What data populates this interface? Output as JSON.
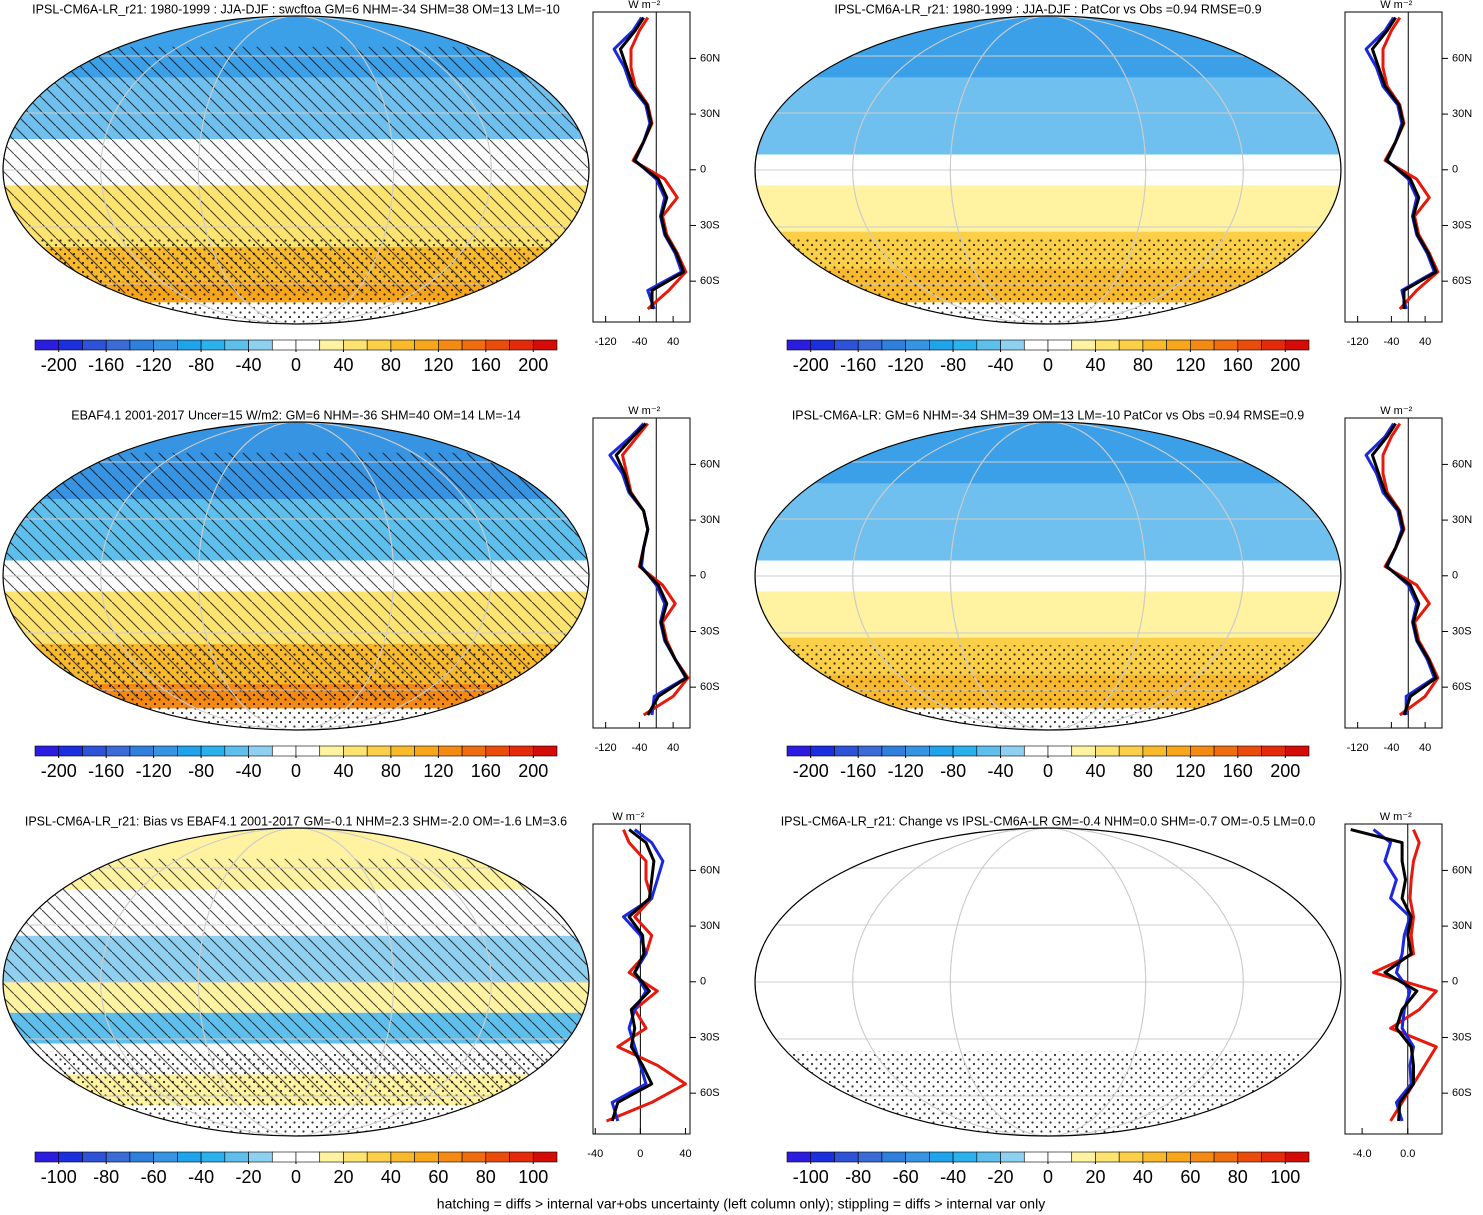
{
  "units": "W m⁻²",
  "footnote": "hatching = diffs > internal var+obs uncertainty (left column only); stippling = diffs > internal var only",
  "panels": [
    {
      "title": "IPSL-CM6A-LR_r21: 1980-1999 : JJA-DJF : swcftoa GM=6 NHM=-34 SHM=38 OM=13 LM=-10",
      "colorbar": {
        "min": -220,
        "max": 220,
        "ticks": [
          -200,
          -160,
          -120,
          -80,
          -40,
          0,
          40,
          80,
          120,
          160,
          200
        ]
      },
      "profile": {
        "xlim": [
          -150,
          80
        ],
        "xticks": [
          -120,
          -40,
          40
        ],
        "ylim": [
          -82,
          85
        ],
        "yticks": [
          {
            "value": 60,
            "label": "60N"
          },
          {
            "value": 30,
            "label": "30N"
          },
          0,
          {
            "value": -30,
            "label": "30S"
          },
          {
            "value": -60,
            "label": "60S"
          }
        ],
        "lat": [
          -75,
          -65,
          -55,
          -45,
          -35,
          -25,
          -15,
          -5,
          5,
          15,
          25,
          35,
          45,
          55,
          65,
          75,
          82
        ],
        "series": [
          {
            "color": "#e8180c",
            "values": [
              -20,
              30,
              70,
              50,
              25,
              15,
              50,
              20,
              -55,
              -30,
              -10,
              -20,
              -50,
              -60,
              -60,
              -40,
              -20
            ]
          },
          {
            "color": "#1a28e0",
            "values": [
              -5,
              -20,
              60,
              45,
              20,
              10,
              20,
              0,
              -50,
              -30,
              -15,
              -25,
              -60,
              -75,
              -100,
              -55,
              -35
            ]
          },
          {
            "color": "#000000",
            "values": [
              -10,
              -10,
              65,
              48,
              22,
              12,
              25,
              5,
              -52,
              -30,
              -12,
              -22,
              -55,
              -70,
              -85,
              -50,
              -30
            ]
          }
        ]
      }
    },
    {
      "title": "IPSL-CM6A-LR_r21: 1980-1999 : JJA-DJF : PatCor vs Obs =0.94 RMSE=0.9",
      "colorbar": {
        "min": -220,
        "max": 220,
        "ticks": [
          -200,
          -160,
          -120,
          -80,
          -40,
          0,
          40,
          80,
          120,
          160,
          200
        ]
      },
      "profile": {
        "xlim": [
          -150,
          80
        ],
        "xticks": [
          -120,
          -40,
          40
        ],
        "ylim": [
          -82,
          85
        ],
        "yticks": [
          {
            "value": 60,
            "label": "60N"
          },
          {
            "value": 30,
            "label": "30N"
          },
          0,
          {
            "value": -30,
            "label": "30S"
          },
          {
            "value": -60,
            "label": "60S"
          }
        ],
        "lat": [
          -75,
          -65,
          -55,
          -45,
          -35,
          -25,
          -15,
          -5,
          5,
          15,
          25,
          35,
          45,
          55,
          65,
          75,
          82
        ],
        "series": [
          {
            "color": "#e8180c",
            "values": [
              -20,
              20,
              70,
              50,
              25,
              15,
              50,
              20,
              -55,
              -30,
              -10,
              -20,
              -50,
              -60,
              -60,
              -40,
              -20
            ]
          },
          {
            "color": "#1a28e0",
            "values": [
              -5,
              -15,
              62,
              45,
              20,
              10,
              20,
              0,
              -50,
              -30,
              -15,
              -25,
              -60,
              -75,
              -100,
              -55,
              -35
            ]
          },
          {
            "color": "#000000",
            "values": [
              -10,
              -10,
              66,
              48,
              22,
              12,
              25,
              5,
              -52,
              -30,
              -12,
              -22,
              -55,
              -70,
              -85,
              -50,
              -30
            ]
          }
        ]
      }
    },
    {
      "title": "EBAF4.1 2001-2017 Uncer=15 W/m2: GM=6 NHM=-36 SHM=40 OM=14 LM=-14",
      "colorbar": {
        "min": -220,
        "max": 220,
        "ticks": [
          -200,
          -160,
          -120,
          -80,
          -40,
          0,
          40,
          80,
          120,
          160,
          200
        ]
      },
      "profile": {
        "xlim": [
          -150,
          80
        ],
        "xticks": [
          -120,
          -40,
          40
        ],
        "ylim": [
          -82,
          85
        ],
        "yticks": [
          {
            "value": 60,
            "label": "60N"
          },
          {
            "value": 30,
            "label": "30N"
          },
          0,
          {
            "value": -30,
            "label": "30S"
          },
          {
            "value": -60,
            "label": "60S"
          }
        ],
        "lat": [
          -75,
          -65,
          -55,
          -45,
          -35,
          -25,
          -15,
          -5,
          5,
          15,
          25,
          35,
          45,
          55,
          65,
          75,
          82
        ],
        "series": [
          {
            "color": "#e8180c",
            "values": [
              -30,
              40,
              75,
              45,
              25,
              15,
              45,
              15,
              -40,
              -30,
              -20,
              -30,
              -60,
              -70,
              -80,
              -45,
              -20
            ]
          },
          {
            "color": "#1a28e0",
            "values": [
              -10,
              -5,
              70,
              45,
              20,
              10,
              20,
              0,
              -35,
              -30,
              -20,
              -30,
              -65,
              -80,
              -110,
              -60,
              -30
            ]
          },
          {
            "color": "#000000",
            "values": [
              -20,
              5,
              72,
              45,
              22,
              12,
              25,
              5,
              -38,
              -30,
              -20,
              -30,
              -62,
              -75,
              -95,
              -55,
              -25
            ]
          }
        ]
      }
    },
    {
      "title": "IPSL-CM6A-LR: GM=6 NHM=-34 SHM=39 OM=13 LM=-10 PatCor vs Obs =0.94 RMSE=0.9",
      "colorbar": {
        "min": -220,
        "max": 220,
        "ticks": [
          -200,
          -160,
          -120,
          -80,
          -40,
          0,
          40,
          80,
          120,
          160,
          200
        ]
      },
      "profile": {
        "xlim": [
          -150,
          80
        ],
        "xticks": [
          -120,
          -40,
          40
        ],
        "ylim": [
          -82,
          85
        ],
        "yticks": [
          {
            "value": 60,
            "label": "60N"
          },
          {
            "value": 30,
            "label": "30N"
          },
          0,
          {
            "value": -30,
            "label": "30S"
          },
          {
            "value": -60,
            "label": "60S"
          }
        ],
        "lat": [
          -75,
          -65,
          -55,
          -45,
          -35,
          -25,
          -15,
          -5,
          5,
          15,
          25,
          35,
          45,
          55,
          65,
          75,
          82
        ],
        "series": [
          {
            "color": "#e8180c",
            "values": [
              -20,
              40,
              70,
              50,
              25,
              15,
              50,
              20,
              -55,
              -30,
              -10,
              -20,
              -50,
              -60,
              -60,
              -40,
              -20
            ]
          },
          {
            "color": "#1a28e0",
            "values": [
              -5,
              -5,
              62,
              45,
              20,
              10,
              20,
              0,
              -50,
              -30,
              -15,
              -25,
              -60,
              -75,
              -100,
              -55,
              -35
            ]
          },
          {
            "color": "#000000",
            "values": [
              -10,
              5,
              66,
              48,
              22,
              12,
              25,
              5,
              -52,
              -30,
              -12,
              -22,
              -55,
              -70,
              -85,
              -50,
              -30
            ]
          }
        ]
      }
    },
    {
      "title": "IPSL-CM6A-LR_r21: Bias vs EBAF4.1 2001-2017 GM=-0.1 NHM=2.3 SHM=-2.0 OM=-1.6 LM=3.6",
      "colorbar": {
        "min": -110,
        "max": 110,
        "ticks": [
          -100,
          -80,
          -60,
          -40,
          -20,
          0,
          20,
          40,
          60,
          80,
          100
        ]
      },
      "profile": {
        "xlim": [
          -42,
          44
        ],
        "xticks": [
          -40,
          0,
          40
        ],
        "ylim": [
          -82,
          85
        ],
        "yticks": [
          {
            "value": 60,
            "label": "60N"
          },
          {
            "value": 30,
            "label": "30N"
          },
          0,
          {
            "value": -30,
            "label": "30S"
          },
          {
            "value": -60,
            "label": "60S"
          }
        ],
        "lat": [
          -75,
          -65,
          -55,
          -45,
          -35,
          -25,
          -15,
          -5,
          5,
          15,
          25,
          35,
          45,
          55,
          65,
          75,
          82
        ],
        "series": [
          {
            "color": "#e8180c",
            "values": [
              -30,
              10,
              40,
              15,
              -20,
              5,
              -5,
              15,
              -10,
              5,
              10,
              -5,
              10,
              5,
              5,
              -10,
              -15
            ]
          },
          {
            "color": "#1a28e0",
            "values": [
              -20,
              -25,
              5,
              0,
              -5,
              -10,
              -5,
              5,
              -5,
              5,
              0,
              -15,
              10,
              15,
              20,
              10,
              -5
            ]
          },
          {
            "color": "#000000",
            "values": [
              -25,
              -20,
              10,
              2,
              -8,
              -5,
              -8,
              8,
              -5,
              3,
              2,
              -10,
              8,
              10,
              12,
              5,
              -10
            ]
          }
        ]
      }
    },
    {
      "title": "IPSL-CM6A-LR_r21: Change vs IPSL-CM6A-LR GM=-0.4 NHM=0.0 SHM=-0.7 OM=-0.5 LM=0.0",
      "colorbar": {
        "min": -110,
        "max": 110,
        "ticks": [
          -100,
          -80,
          -60,
          -40,
          -20,
          0,
          20,
          40,
          60,
          80,
          100
        ]
      },
      "profile": {
        "xlim": [
          -5.5,
          3
        ],
        "xticks": [
          {
            "value": -4,
            "label": "-4.0"
          },
          {
            "value": 0,
            "label": "0.0"
          }
        ],
        "ylim": [
          -82,
          85
        ],
        "yticks": [
          {
            "value": 60,
            "label": "60N"
          },
          {
            "value": 30,
            "label": "30N"
          },
          0,
          {
            "value": -30,
            "label": "30S"
          },
          {
            "value": -60,
            "label": "60S"
          }
        ],
        "lat": [
          -75,
          -65,
          -55,
          -45,
          -35,
          -25,
          -15,
          -5,
          5,
          15,
          25,
          35,
          45,
          55,
          65,
          75,
          82
        ],
        "series": [
          {
            "color": "#e8180c",
            "values": [
              -1.5,
              -0.5,
              0.5,
              1.5,
              2.5,
              -1.5,
              1.0,
              2.5,
              -3.0,
              0.5,
              0.3,
              0.5,
              0.2,
              0.3,
              0.5,
              1.0,
              0.5
            ]
          },
          {
            "color": "#1a28e0",
            "values": [
              -0.5,
              -1.0,
              0.3,
              0.2,
              0.5,
              -0.5,
              -0.3,
              0.2,
              -1.0,
              -0.5,
              -0.3,
              0.2,
              -1.5,
              -1.0,
              -2.0,
              -1.5,
              -3.0
            ]
          },
          {
            "color": "#000000",
            "values": [
              -0.8,
              -0.7,
              0.5,
              0.5,
              0.3,
              -1.0,
              -0.5,
              0.8,
              -2.0,
              0.3,
              0.0,
              0.3,
              -0.5,
              -0.2,
              -0.5,
              -0.5,
              -5.0
            ]
          }
        ]
      }
    }
  ]
}
